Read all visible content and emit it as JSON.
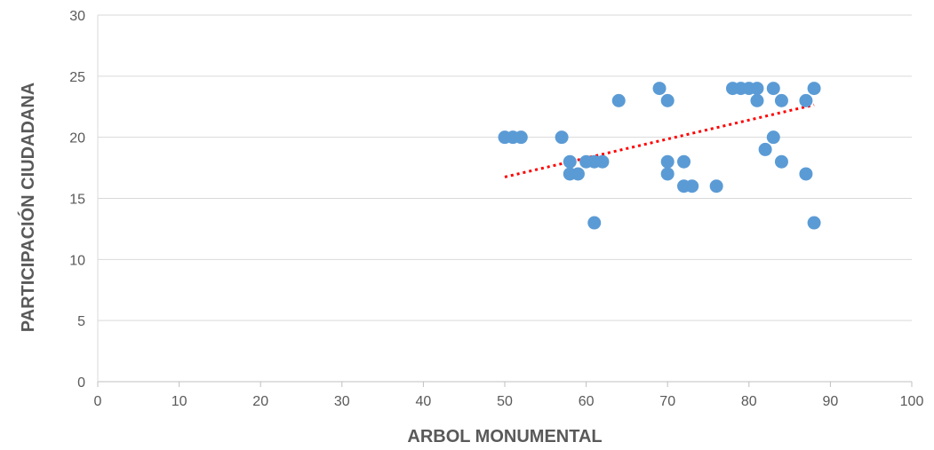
{
  "chart_data": {
    "type": "scatter",
    "xlabel": "ARBOL MONUMENTAL",
    "ylabel": "PARTICIPACIÓN CIUDADANA",
    "xlim": [
      0,
      100
    ],
    "ylim": [
      0,
      30
    ],
    "x_ticks": [
      0,
      10,
      20,
      30,
      40,
      50,
      60,
      70,
      80,
      90,
      100
    ],
    "y_ticks": [
      0,
      5,
      10,
      15,
      20,
      25,
      30
    ],
    "grid": {
      "horizontal": true,
      "vertical": false
    },
    "legend": "none",
    "point_color": "#5B9BD5",
    "trendline": {
      "type": "linear",
      "style": "dotted",
      "color": "#FF0000",
      "x_range": [
        50,
        88
      ],
      "y_range": [
        16.75,
        22.65
      ]
    },
    "points": [
      {
        "x": 50,
        "y": 20
      },
      {
        "x": 51,
        "y": 20
      },
      {
        "x": 52,
        "y": 20
      },
      {
        "x": 57,
        "y": 20
      },
      {
        "x": 58,
        "y": 18
      },
      {
        "x": 58,
        "y": 17
      },
      {
        "x": 59,
        "y": 17
      },
      {
        "x": 60,
        "y": 18
      },
      {
        "x": 61,
        "y": 18
      },
      {
        "x": 61,
        "y": 13
      },
      {
        "x": 62,
        "y": 18
      },
      {
        "x": 64,
        "y": 23
      },
      {
        "x": 69,
        "y": 24
      },
      {
        "x": 70,
        "y": 23
      },
      {
        "x": 70,
        "y": 18
      },
      {
        "x": 70,
        "y": 17
      },
      {
        "x": 72,
        "y": 18
      },
      {
        "x": 72,
        "y": 16
      },
      {
        "x": 73,
        "y": 16
      },
      {
        "x": 76,
        "y": 16
      },
      {
        "x": 78,
        "y": 24
      },
      {
        "x": 79,
        "y": 24
      },
      {
        "x": 80,
        "y": 24
      },
      {
        "x": 81,
        "y": 24
      },
      {
        "x": 81,
        "y": 23
      },
      {
        "x": 82,
        "y": 19
      },
      {
        "x": 83,
        "y": 24
      },
      {
        "x": 83,
        "y": 20
      },
      {
        "x": 84,
        "y": 23
      },
      {
        "x": 84,
        "y": 18
      },
      {
        "x": 87,
        "y": 23
      },
      {
        "x": 87,
        "y": 17
      },
      {
        "x": 88,
        "y": 24
      },
      {
        "x": 88,
        "y": 13
      }
    ]
  }
}
